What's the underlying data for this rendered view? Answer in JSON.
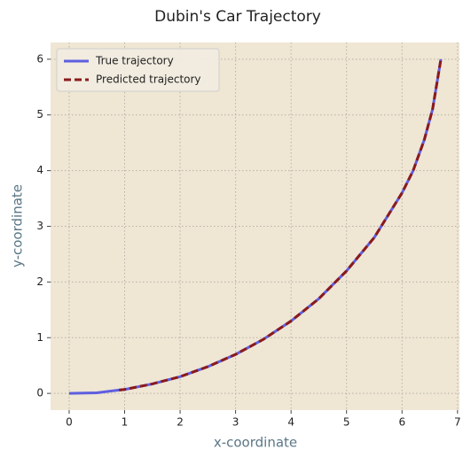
{
  "chart_data": {
    "type": "line",
    "title": "Dubin's Car Trajectory",
    "x_label": "x-coordinate",
    "y_label": "y-coordinate",
    "x": [
      0,
      0.5,
      0.9,
      1,
      1.5,
      2,
      2.5,
      3,
      3.5,
      4,
      4.5,
      5,
      5.5,
      6,
      6.2,
      6.4,
      6.55,
      6.7
    ],
    "series": [
      {
        "name": "True trajectory",
        "color": "#5e5ee0",
        "dash": false,
        "values": [
          0,
          0.01,
          0.06,
          0.07,
          0.17,
          0.3,
          0.48,
          0.7,
          0.97,
          1.3,
          1.7,
          2.2,
          2.8,
          3.6,
          4.0,
          4.55,
          5.1,
          6.0
        ]
      },
      {
        "name": "Predicted trajectory",
        "color": "#8b1a1a",
        "dash": true,
        "values": [
          null,
          null,
          0.06,
          0.07,
          0.17,
          0.3,
          0.48,
          0.7,
          0.97,
          1.3,
          1.7,
          2.2,
          2.8,
          3.6,
          4.0,
          4.55,
          5.1,
          6.0
        ]
      }
    ],
    "xlim": [
      -0.335,
      7.035
    ],
    "ylim": [
      -0.3,
      6.3
    ],
    "xticks": [
      0,
      1,
      2,
      3,
      4,
      5,
      6,
      7
    ],
    "yticks": [
      0,
      1,
      2,
      3,
      4,
      5,
      6
    ],
    "grid": true,
    "legend": "upper left"
  }
}
